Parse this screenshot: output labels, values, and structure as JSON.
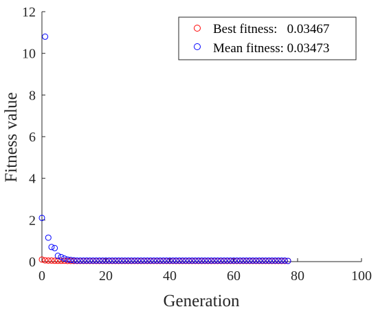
{
  "chart_data": {
    "type": "scatter",
    "title": "",
    "xlabel": "Generation",
    "ylabel": "Fitness value",
    "xlim": [
      0,
      100
    ],
    "ylim": [
      0,
      12
    ],
    "xticks": [
      0,
      20,
      40,
      60,
      80,
      100
    ],
    "yticks": [
      0,
      2,
      4,
      6,
      8,
      10,
      12
    ],
    "grid": false,
    "legend_position": "top-right",
    "marker": "open-circle",
    "series": [
      {
        "name": "Best fitness:   0.03467",
        "color": "#ff0000",
        "x": [
          0,
          1,
          2,
          3,
          4,
          5,
          6,
          7,
          8,
          9,
          10,
          11,
          12,
          13,
          14,
          15,
          16,
          17,
          18,
          19,
          20,
          21,
          22,
          23,
          24,
          25,
          26,
          27,
          28,
          29,
          30,
          31,
          32,
          33,
          34,
          35,
          36,
          37,
          38,
          39,
          40,
          41,
          42,
          43,
          44,
          45,
          46,
          47,
          48,
          49,
          50,
          51,
          52,
          53,
          54,
          55,
          56,
          57,
          58,
          59,
          60,
          61,
          62,
          63,
          64,
          65,
          66,
          67,
          68,
          69,
          70,
          71,
          72,
          73,
          74,
          75,
          76,
          77
        ],
        "y": [
          0.1,
          0.06,
          0.05,
          0.05,
          0.04,
          0.04,
          0.04,
          0.04,
          0.035,
          0.035,
          0.035,
          0.035,
          0.035,
          0.035,
          0.035,
          0.035,
          0.035,
          0.035,
          0.035,
          0.035,
          0.035,
          0.035,
          0.035,
          0.035,
          0.035,
          0.035,
          0.035,
          0.035,
          0.035,
          0.035,
          0.035,
          0.035,
          0.035,
          0.035,
          0.035,
          0.035,
          0.035,
          0.035,
          0.035,
          0.035,
          0.035,
          0.035,
          0.035,
          0.035,
          0.035,
          0.035,
          0.035,
          0.035,
          0.035,
          0.035,
          0.035,
          0.035,
          0.035,
          0.035,
          0.035,
          0.035,
          0.035,
          0.035,
          0.035,
          0.035,
          0.035,
          0.035,
          0.035,
          0.035,
          0.035,
          0.035,
          0.035,
          0.035,
          0.035,
          0.035,
          0.035,
          0.035,
          0.035,
          0.035,
          0.035,
          0.035,
          0.035,
          0.03467
        ]
      },
      {
        "name": "Mean fitness: 0.03473",
        "color": "#0000ff",
        "x": [
          0,
          1,
          2,
          3,
          4,
          5,
          6,
          7,
          8,
          9,
          10,
          11,
          12,
          13,
          14,
          15,
          16,
          17,
          18,
          19,
          20,
          21,
          22,
          23,
          24,
          25,
          26,
          27,
          28,
          29,
          30,
          31,
          32,
          33,
          34,
          35,
          36,
          37,
          38,
          39,
          40,
          41,
          42,
          43,
          44,
          45,
          46,
          47,
          48,
          49,
          50,
          51,
          52,
          53,
          54,
          55,
          56,
          57,
          58,
          59,
          60,
          61,
          62,
          63,
          64,
          65,
          66,
          67,
          68,
          69,
          70,
          71,
          72,
          73,
          74,
          75,
          76,
          77
        ],
        "y": [
          2.1,
          10.8,
          1.15,
          0.7,
          0.65,
          0.28,
          0.22,
          0.15,
          0.1,
          0.08,
          0.06,
          0.05,
          0.05,
          0.05,
          0.05,
          0.05,
          0.05,
          0.05,
          0.05,
          0.05,
          0.05,
          0.05,
          0.05,
          0.05,
          0.05,
          0.05,
          0.05,
          0.05,
          0.05,
          0.05,
          0.05,
          0.05,
          0.05,
          0.05,
          0.05,
          0.05,
          0.05,
          0.05,
          0.05,
          0.05,
          0.05,
          0.05,
          0.05,
          0.05,
          0.05,
          0.05,
          0.05,
          0.05,
          0.05,
          0.05,
          0.05,
          0.05,
          0.05,
          0.05,
          0.05,
          0.05,
          0.05,
          0.05,
          0.05,
          0.05,
          0.05,
          0.05,
          0.05,
          0.05,
          0.05,
          0.05,
          0.05,
          0.05,
          0.05,
          0.05,
          0.05,
          0.05,
          0.05,
          0.05,
          0.05,
          0.05,
          0.05,
          0.03473
        ]
      }
    ]
  }
}
